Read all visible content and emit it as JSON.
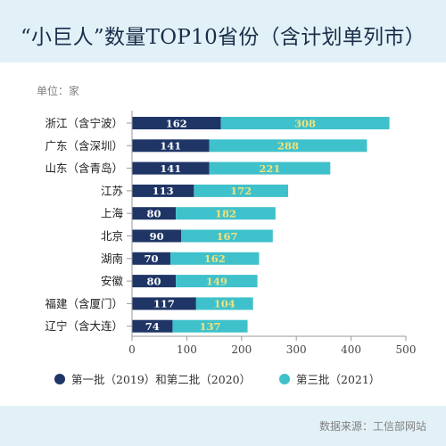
{
  "title": "“小巨人”数量TOP10省份（含计划单列市）",
  "unit_label": "单位：家",
  "source": "数据来源：工信部网站",
  "colors": {
    "series1": "#1f3566",
    "series2": "#3fc1cb",
    "label1": "#ffffff",
    "label2": "#f2e27a",
    "header_bg": "#e2f1f7"
  },
  "chart_data": {
    "type": "bar",
    "orientation": "horizontal",
    "stacked": true,
    "categories": [
      "浙江（含宁波）",
      "广东（含深圳）",
      "山东（含青岛）",
      "江苏",
      "上海",
      "北京",
      "湖南",
      "安徽",
      "福建（含厦门）",
      "辽宁（含大连）"
    ],
    "series": [
      {
        "name": "第一批（2019）和第二批（2020）",
        "values": [
          162,
          141,
          141,
          113,
          80,
          90,
          70,
          80,
          117,
          74
        ]
      },
      {
        "name": "第三批（2021）",
        "values": [
          308,
          288,
          221,
          172,
          182,
          167,
          162,
          149,
          104,
          137
        ]
      }
    ],
    "xlim": [
      0,
      500
    ],
    "xticks": [
      0,
      100,
      200,
      300,
      400,
      500
    ],
    "grid": false,
    "legend_position": "bottom"
  }
}
